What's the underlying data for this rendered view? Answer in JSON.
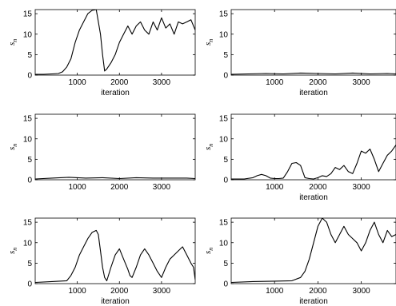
{
  "chart_data": [
    {
      "type": "line",
      "xlabel": "iteration",
      "ylabel": "s",
      "ylabel_sub": "n",
      "xlim": [
        0,
        3800
      ],
      "ylim": [
        0,
        16
      ],
      "xticks": [
        "1000",
        "2000",
        "3000"
      ],
      "yticks": [
        "0",
        "5",
        "10",
        "15"
      ],
      "series": [
        {
          "x": [
            0,
            200,
            400,
            550,
            650,
            750,
            850,
            950,
            1050,
            1150,
            1250,
            1350,
            1450,
            1550,
            1600,
            1650,
            1700,
            1800,
            1900,
            2000,
            2100,
            2200,
            2300,
            2400,
            2500,
            2600,
            2700,
            2800,
            2900,
            3000,
            3100,
            3200,
            3300,
            3400,
            3500,
            3600,
            3700,
            3800
          ],
          "y": [
            0.2,
            0.2,
            0.3,
            0.4,
            0.8,
            2,
            4,
            8,
            11,
            13,
            15,
            15.8,
            16,
            10,
            5,
            1,
            1.5,
            3,
            5,
            8,
            10,
            12,
            10,
            12,
            13,
            11,
            10,
            13,
            11,
            14,
            11.5,
            12.5,
            10,
            13,
            12.5,
            13,
            13.5,
            11
          ]
        }
      ]
    },
    {
      "type": "line",
      "xlabel": "iteration",
      "ylabel": "s",
      "ylabel_sub": "n",
      "xlim": [
        0,
        3800
      ],
      "ylim": [
        0,
        16
      ],
      "xticks": [
        "1000",
        "2000",
        "3000"
      ],
      "yticks": [
        "0",
        "5",
        "10",
        "15"
      ],
      "series": [
        {
          "x": [
            0,
            400,
            800,
            1200,
            1600,
            2000,
            2400,
            2800,
            3200,
            3600,
            3800
          ],
          "y": [
            0.2,
            0.3,
            0.4,
            0.3,
            0.5,
            0.4,
            0.3,
            0.5,
            0.3,
            0.4,
            0.3
          ]
        }
      ]
    },
    {
      "type": "line",
      "xlabel": "",
      "ylabel": "s",
      "ylabel_sub": "n",
      "xlim": [
        0,
        3800
      ],
      "ylim": [
        0,
        16
      ],
      "xticks": [
        "1000",
        "2000",
        "3000"
      ],
      "yticks": [
        "0",
        "5",
        "10",
        "15"
      ],
      "series": [
        {
          "x": [
            0,
            400,
            800,
            1200,
            1600,
            2000,
            2400,
            2800,
            3200,
            3600,
            3800
          ],
          "y": [
            0.2,
            0.4,
            0.6,
            0.4,
            0.5,
            0.3,
            0.5,
            0.4,
            0.4,
            0.4,
            0.3
          ]
        }
      ]
    },
    {
      "type": "line",
      "xlabel": "iteration",
      "ylabel": "s",
      "ylabel_sub": "n",
      "xlim": [
        0,
        3800
      ],
      "ylim": [
        0,
        16
      ],
      "xticks": [
        "1000",
        "2000",
        "3000"
      ],
      "yticks": [
        "0",
        "5",
        "10",
        "15"
      ],
      "series": [
        {
          "x": [
            0,
            300,
            500,
            600,
            700,
            800,
            900,
            1000,
            1100,
            1200,
            1300,
            1400,
            1500,
            1600,
            1700,
            1800,
            1900,
            2000,
            2100,
            2200,
            2300,
            2400,
            2500,
            2600,
            2700,
            2800,
            2900,
            3000,
            3100,
            3200,
            3300,
            3400,
            3500,
            3600,
            3700,
            3800
          ],
          "y": [
            0.2,
            0.2,
            0.5,
            1,
            1.3,
            1,
            0.4,
            0.3,
            0.3,
            0.4,
            2,
            4,
            4.2,
            3.5,
            0.5,
            0.3,
            0.2,
            0.5,
            1,
            0.8,
            1.5,
            3,
            2.5,
            3.5,
            2,
            1.5,
            4,
            7,
            6.5,
            7.5,
            5,
            2,
            4,
            6,
            7,
            8.5
          ]
        }
      ]
    },
    {
      "type": "line",
      "xlabel": "iteration",
      "ylabel": "s",
      "ylabel_sub": "n",
      "xlim": [
        0,
        3800
      ],
      "ylim": [
        0,
        16
      ],
      "xticks": [
        "1000",
        "2000",
        "3000"
      ],
      "yticks": [
        "0",
        "5",
        "10",
        "15"
      ],
      "series": [
        {
          "x": [
            0,
            400,
            750,
            850,
            950,
            1050,
            1150,
            1250,
            1350,
            1450,
            1500,
            1550,
            1600,
            1650,
            1700,
            1800,
            1900,
            2000,
            2100,
            2200,
            2250,
            2300,
            2400,
            2500,
            2600,
            2700,
            2800,
            2900,
            3000,
            3100,
            3200,
            3300,
            3400,
            3500,
            3600,
            3700,
            3760,
            3800
          ],
          "y": [
            0.3,
            0.5,
            0.7,
            2,
            4,
            7,
            9,
            11,
            12.5,
            13,
            12,
            8,
            4,
            1.5,
            0.7,
            4,
            7,
            8.5,
            6,
            3.5,
            2,
            1.5,
            4,
            7,
            8.5,
            7,
            5,
            3,
            1.5,
            4,
            6,
            7,
            8,
            9,
            7,
            5,
            4,
            1
          ]
        }
      ]
    },
    {
      "type": "line",
      "xlabel": "iteration",
      "ylabel": "s",
      "ylabel_sub": "n",
      "xlim": [
        0,
        3800
      ],
      "ylim": [
        0,
        16
      ],
      "xticks": [
        "1000",
        "2000",
        "3000"
      ],
      "yticks": [
        "0",
        "5",
        "10",
        "15"
      ],
      "series": [
        {
          "x": [
            0,
            500,
            1000,
            1400,
            1600,
            1700,
            1800,
            1900,
            2000,
            2100,
            2200,
            2300,
            2400,
            2500,
            2600,
            2700,
            2800,
            2900,
            3000,
            3100,
            3200,
            3300,
            3400,
            3500,
            3600,
            3700,
            3800
          ],
          "y": [
            0.3,
            0.5,
            0.6,
            0.7,
            1.5,
            3,
            6,
            10,
            14,
            16,
            15,
            12,
            10,
            12,
            14,
            12,
            11,
            10,
            8,
            10,
            13,
            15,
            12,
            10,
            13,
            11.5,
            12
          ]
        }
      ]
    }
  ]
}
